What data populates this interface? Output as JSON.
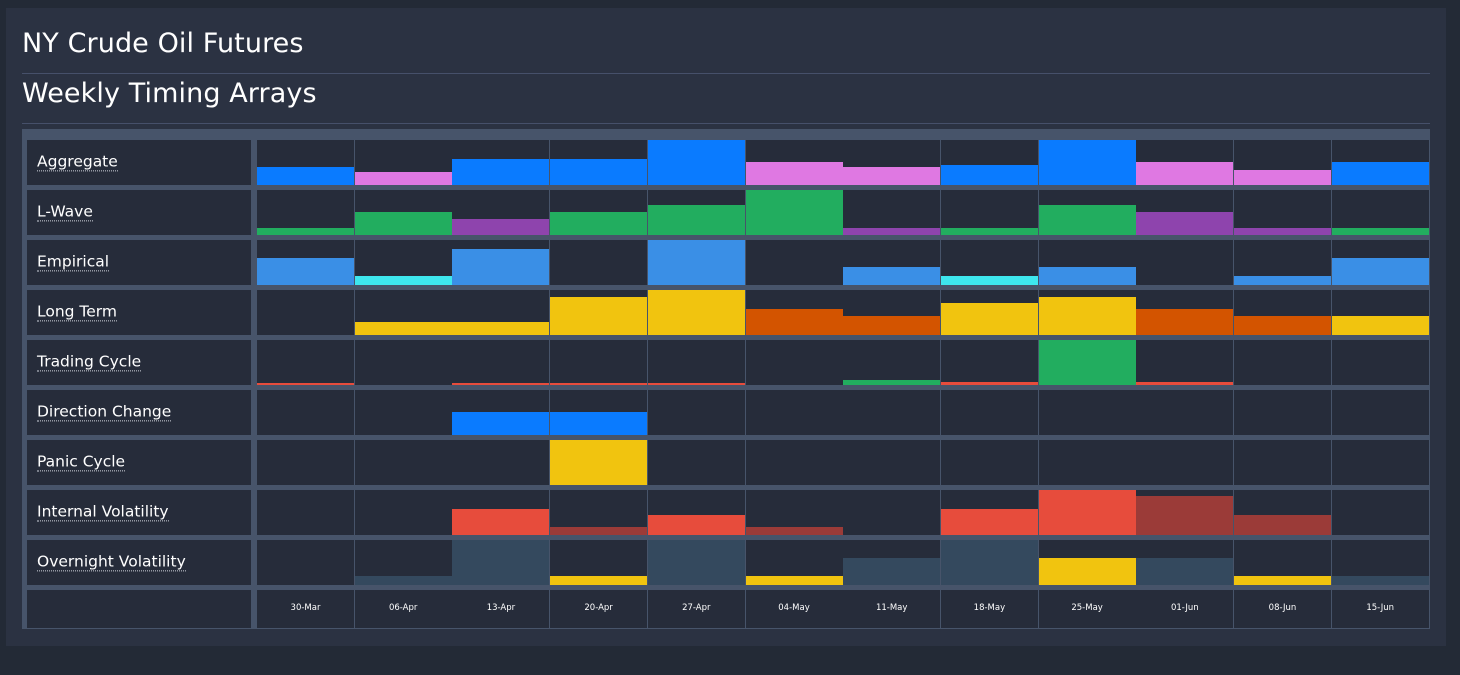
{
  "header": {
    "title": "NY Crude Oil Futures",
    "subtitle": "Weekly Timing Arrays"
  },
  "colors": {
    "blue": "#0a7bff",
    "pink": "#df78e2",
    "green": "#22ad5f",
    "purple": "#8e44ad",
    "lightblue": "#3a8fe6",
    "cyan": "#3ee6ee",
    "yellow": "#f1c40f",
    "orange": "#d35400",
    "red": "#e74c3c",
    "darkred": "#9b3b38",
    "slate": "#34495e"
  },
  "chart_data": {
    "type": "heatmap",
    "title": "Weekly Timing Arrays",
    "categories": [
      "30-Mar",
      "06-Apr",
      "13-Apr",
      "20-Apr",
      "27-Apr",
      "04-May",
      "11-May",
      "18-May",
      "25-May",
      "01-Jun",
      "08-Jun",
      "15-Jun"
    ],
    "value_scale": [
      0,
      1
    ],
    "series": [
      {
        "name": "Aggregate",
        "values": [
          0.4,
          0.28,
          0.57,
          0.57,
          1.0,
          0.5,
          0.4,
          0.45,
          1.0,
          0.52,
          0.33,
          0.5
        ],
        "colors": [
          "blue",
          "pink",
          "blue",
          "blue",
          "blue",
          "pink",
          "pink",
          "blue",
          "blue",
          "pink",
          "pink",
          "blue"
        ]
      },
      {
        "name": "L-Wave",
        "values": [
          0.15,
          0.5,
          0.35,
          0.5,
          0.67,
          1.0,
          0.15,
          0.15,
          0.67,
          0.5,
          0.15,
          0.15
        ],
        "colors": [
          "green",
          "green",
          "purple",
          "green",
          "green",
          "green",
          "purple",
          "green",
          "green",
          "purple",
          "purple",
          "green"
        ]
      },
      {
        "name": "Empirical",
        "values": [
          0.6,
          0.2,
          0.8,
          0.0,
          1.0,
          0.0,
          0.4,
          0.2,
          0.4,
          0.0,
          0.2,
          0.6
        ],
        "colors": [
          "lightblue",
          "cyan",
          "lightblue",
          "lightblue",
          "lightblue",
          "lightblue",
          "lightblue",
          "cyan",
          "lightblue",
          "lightblue",
          "lightblue",
          "lightblue"
        ]
      },
      {
        "name": "Long Term",
        "values": [
          0.0,
          0.28,
          0.28,
          0.84,
          1.0,
          0.58,
          0.43,
          0.72,
          0.84,
          0.58,
          0.43,
          0.43
        ],
        "colors": [
          "yellow",
          "yellow",
          "yellow",
          "yellow",
          "yellow",
          "orange",
          "orange",
          "yellow",
          "yellow",
          "orange",
          "orange",
          "yellow"
        ]
      },
      {
        "name": "Trading Cycle",
        "values": [
          0.03,
          0.0,
          0.03,
          0.05,
          0.05,
          0.0,
          0.12,
          0.06,
          1.0,
          0.06,
          0.0,
          0.0
        ],
        "colors": [
          "red",
          "red",
          "red",
          "red",
          "red",
          "red",
          "green",
          "red",
          "green",
          "red",
          "red",
          "red"
        ]
      },
      {
        "name": "Direction Change",
        "values": [
          0,
          0,
          0.5,
          0.5,
          0,
          0,
          0,
          0,
          0,
          0,
          0,
          0
        ],
        "colors": [
          "blue",
          "blue",
          "blue",
          "blue",
          "blue",
          "blue",
          "blue",
          "blue",
          "blue",
          "blue",
          "blue",
          "blue"
        ]
      },
      {
        "name": "Panic Cycle",
        "values": [
          0,
          0,
          0,
          1.0,
          0,
          0,
          0,
          0,
          0,
          0,
          0,
          0
        ],
        "colors": [
          "yellow",
          "yellow",
          "yellow",
          "yellow",
          "yellow",
          "yellow",
          "yellow",
          "yellow",
          "yellow",
          "yellow",
          "yellow",
          "yellow"
        ]
      },
      {
        "name": "Internal Volatility",
        "values": [
          0,
          0,
          0.57,
          0.17,
          0.45,
          0.17,
          0,
          0.57,
          1.0,
          0.87,
          0.45,
          0
        ],
        "colors": [
          "red",
          "red",
          "red",
          "darkred",
          "red",
          "darkred",
          "red",
          "red",
          "red",
          "darkred",
          "darkred",
          "red"
        ]
      },
      {
        "name": "Overnight Volatility",
        "values": [
          0,
          0.2,
          1.0,
          0.2,
          1.0,
          0.2,
          0.6,
          1.0,
          0.6,
          0.6,
          0.2,
          0.2
        ],
        "colors": [
          "slate",
          "slate",
          "slate",
          "yellow",
          "slate",
          "yellow",
          "slate",
          "slate",
          "yellow",
          "slate",
          "yellow",
          "slate"
        ]
      }
    ]
  }
}
